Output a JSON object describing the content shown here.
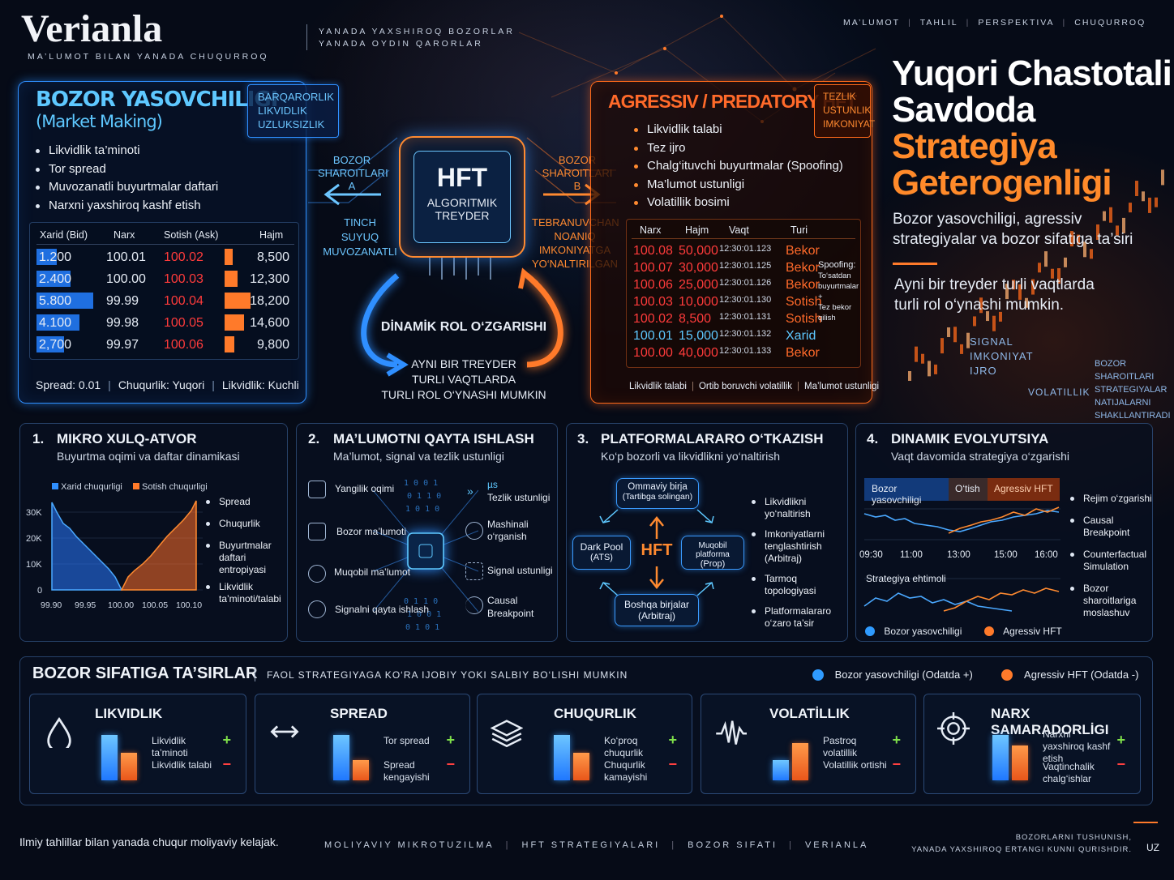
{
  "brand": {
    "name": "Verianla",
    "tagline": "MA’LUMOT BILAN YANADA CHUQURROQ",
    "slogan1": "YANADA YAXSHIROQ BOZORLAR",
    "slogan2": "YANADA OYDIN QARORLAR"
  },
  "nav": [
    "MA’LUMOT",
    "TAHLIL",
    "PERSPEKTIVA",
    "CHUQURROQ"
  ],
  "hero": {
    "title1": "Yuqori Chastotali",
    "title2": "Savdoda",
    "title3": "Strategiya",
    "title4": "Geterogenligi",
    "subtitle": "Bozor yasovchiligi, agressiv strategiyalar va bozor sifatiga ta’siri",
    "note": "Ayni bir treyder turli vaqtlarda turli rol o‘ynashi mumkin.",
    "signal": [
      "SIGNAL",
      "IMKONIYAT",
      "IJRO"
    ],
    "volatility": "VOLATILLIK",
    "conditions": [
      "BOZOR",
      "SHAROITLARI",
      "STRATEGIYALAR",
      "NATIJALARNI",
      "SHAKLLANTIRADI"
    ]
  },
  "mm": {
    "title": "BOZOR YASOVCHILIGI",
    "title2": "(Market Making)",
    "tags": [
      "BARQARORLIK",
      "LIKVIDLIK",
      "UZLUKSIZLIK"
    ],
    "bullets": [
      "Likvidlik ta’minoti",
      "Tor spread",
      "Muvozanatli buyurtmalar daftari",
      "Narxni yaxshiroq kashf etish"
    ],
    "headers": [
      "Xarid (Bid)",
      "Narx",
      "Sotish (Ask)",
      "Hajm"
    ],
    "rows": [
      {
        "bid": "1.200",
        "price": "100.01",
        "ask": "100.02",
        "vol": "8,500",
        "bidfill": 0.36,
        "askfill": 0.3
      },
      {
        "bid": "2.400",
        "price": "100.00",
        "ask": "100.03",
        "vol": "12,300",
        "bidfill": 0.6,
        "askfill": 0.5
      },
      {
        "bid": "5.800",
        "price": "99.99",
        "ask": "100.04",
        "vol": "18,200",
        "bidfill": 1.0,
        "askfill": 1.0
      },
      {
        "bid": "4.100",
        "price": "99.98",
        "ask": "100.05",
        "vol": "14,600",
        "bidfill": 0.75,
        "askfill": 0.75
      },
      {
        "bid": "2,700",
        "price": "99.97",
        "ask": "100.06",
        "vol": "9,800",
        "bidfill": 0.48,
        "askfill": 0.38
      }
    ],
    "footer": [
      "Spread: 0.01",
      "Chuqurlik: Yuqori",
      "Likvidlik: Kuchli"
    ]
  },
  "center": {
    "chip1": "HFT",
    "chip2": "ALGORITMIK",
    "chip3": "TREYDER",
    "leftLabel": [
      "BOZOR",
      "SHAROITLARI A"
    ],
    "rightLabel": [
      "BOZOR",
      "SHAROITLARI B"
    ],
    "leftSub": [
      "TINCH",
      "SUYUQ",
      "MUVOZANATLI"
    ],
    "rightSub": [
      "TEBRANUVCHAN",
      "NOANIQ",
      "IMKONIYATGA",
      "YO‘NALTIRILGAN"
    ],
    "dyn": "DİNAMİK ROL O‘ZGARISHI",
    "dynSub": [
      "AYNI BIR TREYDER",
      "TURLI VAQTLARDA",
      "TURLI ROL O‘YNASHI MUMKIN"
    ]
  },
  "ag": {
    "title": "AGRESSIV / PREDATORY HFT",
    "tags": [
      "TEZLIK",
      "USTUNLIK",
      "IMKONIYAT"
    ],
    "bullets": [
      "Likvidlik talabi",
      "Tez ijro",
      "Chalg‘ituvchi buyurtmalar (Spoofing)",
      "Ma’lumot ustunligi",
      "Volatillik bosimi"
    ],
    "headers": [
      "Narx",
      "Hajm",
      "Vaqt",
      "Turi"
    ],
    "rows": [
      {
        "p": "100.08",
        "v": "50,000",
        "t": "12:30:01.123",
        "k": "Bekor"
      },
      {
        "p": "100.07",
        "v": "30,000",
        "t": "12:30:01.125",
        "k": "Bekor"
      },
      {
        "p": "100.06",
        "v": "25,000",
        "t": "12:30:01.126",
        "k": "Bekor"
      },
      {
        "p": "100.03",
        "v": "10,000",
        "t": "12:30:01.130",
        "k": "Sotish"
      },
      {
        "p": "100.02",
        "v": "8,500",
        "t": "12:30:01.131",
        "k": "Sotish"
      },
      {
        "p": "100.01",
        "v": "15,000",
        "t": "12:30:01.132",
        "k": "Xarid"
      },
      {
        "p": "100.00",
        "v": "40,000",
        "t": "12:30:01.133",
        "k": "Bekor"
      }
    ],
    "spoof": [
      "Spoofing:",
      "To‘satdan",
      "buyurtmalar +",
      "Tez bekor qilish"
    ],
    "footer": [
      "Likvidlik talabi",
      "Ortib boruvchi volatillik",
      "Ma’lumot ustunligi"
    ]
  },
  "s1": {
    "num": "1.",
    "title": "MIKRO XULQ-ATVOR",
    "sub": "Buyurtma oqimi va daftar dinamikasi",
    "legend": [
      "Xarid chuqurligi",
      "Sotish chuqurligi"
    ],
    "yticks": [
      "30K",
      "20K",
      "10K",
      "0"
    ],
    "xticks": [
      "99.90",
      "99.95",
      "100.00",
      "100.05",
      "100.10"
    ],
    "bullets": [
      "Spread",
      "Chuqurlik",
      "Buyurtmalar daftari entropiyasi",
      "Likvidlik ta’minoti/talabi"
    ]
  },
  "s2": {
    "num": "2.",
    "title": "MA’LUMOTNI QAYTA ISHLASH",
    "sub": "Ma’lumot, signal va tezlik ustunligi",
    "left": [
      "Yangilik oqimi",
      "Bozor ma’lumoti",
      "Muqobil ma’lumot",
      "Signalni qayta ishlash"
    ],
    "mu": "µs",
    "right": [
      "Tezlik ustunligi",
      "Mashinali o‘rganish",
      "Signal ustunligi",
      "Causal Breakpoint"
    ]
  },
  "s3": {
    "num": "3.",
    "title": "PLATFORMALARARO O‘TKAZISH",
    "sub": "Ko‘p bozorli va likvidlikni yo‘naltirish",
    "top": [
      "Ommaviy birja",
      "(Tartibga solingan)"
    ],
    "left": [
      "Dark Pool",
      "(ATS)"
    ],
    "center": "HFT",
    "right": [
      "Muqobil platforma",
      "(Prop)"
    ],
    "bottom": [
      "Boshqa birjalar",
      "(Arbitraj)"
    ],
    "bullets": [
      "Likvidlikni yo‘naltirish",
      "Imkoniyatlarni tenglashtirish (Arbitraj)",
      "Tarmoq topologiyasi",
      "Platformalararo o‘zaro ta’sir"
    ]
  },
  "s4": {
    "num": "4.",
    "title": "DINAMIK EVOLYUTSIYA",
    "sub": "Vaqt davomida strategiya o‘zgarishi",
    "phases": [
      "Bozor yasovchiligi",
      "O‘tish",
      "Agressiv HFT"
    ],
    "times": [
      "09:30",
      "11:00",
      "13:00",
      "15:00",
      "16:00"
    ],
    "prob": "Strategiya ehtimoli",
    "legend": [
      "Bozor yasovchiligi",
      "Agressiv HFT"
    ],
    "bullets": [
      "Rejim o‘zgarishi",
      "Causal Breakpoint",
      "Counterfactual Simulation",
      "Bozor sharoitlariga moslashuv"
    ]
  },
  "impact": {
    "title": "BOZOR SIFATIGA TA’SIRLAR",
    "sub": "FAOL STRATEGIYAGA KO‘RA IJOBIY YOKI SALBIY BO‘LISHI MUMKIN",
    "legend": [
      "Bozor yasovchiligi (Odatda +)",
      "Agressiv HFT (Odatda -)"
    ],
    "cards": [
      {
        "title": "LIKVIDLIK",
        "plus": "Likvidlik ta’minoti",
        "minus": "Likvidlik talabi",
        "icon": "drop-icon",
        "blue": 0.9,
        "orange": 0.55
      },
      {
        "title": "SPREAD",
        "plus": "Tor spread",
        "minus": "Spread kengayishi",
        "icon": "arrows-icon",
        "blue": 0.9,
        "orange": 0.4
      },
      {
        "title": "CHUQURLIK",
        "plus": "Ko‘proq chuqurlik",
        "minus": "Chuqurlik kamayishi",
        "icon": "layers-icon",
        "blue": 0.9,
        "orange": 0.55
      },
      {
        "title": "VOLATİLLIK",
        "plus": "Pastroq volatillik",
        "minus": "Volatillik ortishi",
        "icon": "wave-icon",
        "blue": 0.4,
        "orange": 0.75
      },
      {
        "title": "NARX SAMARADORLİGI",
        "plus": "Narxni yaxshiroq kashf etish",
        "minus": "Vaqtinchalik chalg‘ishlar",
        "icon": "target-icon",
        "blue": 0.9,
        "orange": 0.7
      }
    ]
  },
  "footer": {
    "left": "Ilmiy tahlillar bilan yanada chuqur moliyaviy kelajak.",
    "mid": [
      "MOLIYAVIY MIKROTUZILMA",
      "HFT STRATEGIYALARI",
      "BOZOR SIFATI",
      "VERIANLA"
    ],
    "right1": "BOZORLARNI TUSHUNISH,",
    "right2": "YANADA YAXSHIROQ ERTANGI KUNNI QURISHDIR.",
    "lang": "UZ"
  }
}
